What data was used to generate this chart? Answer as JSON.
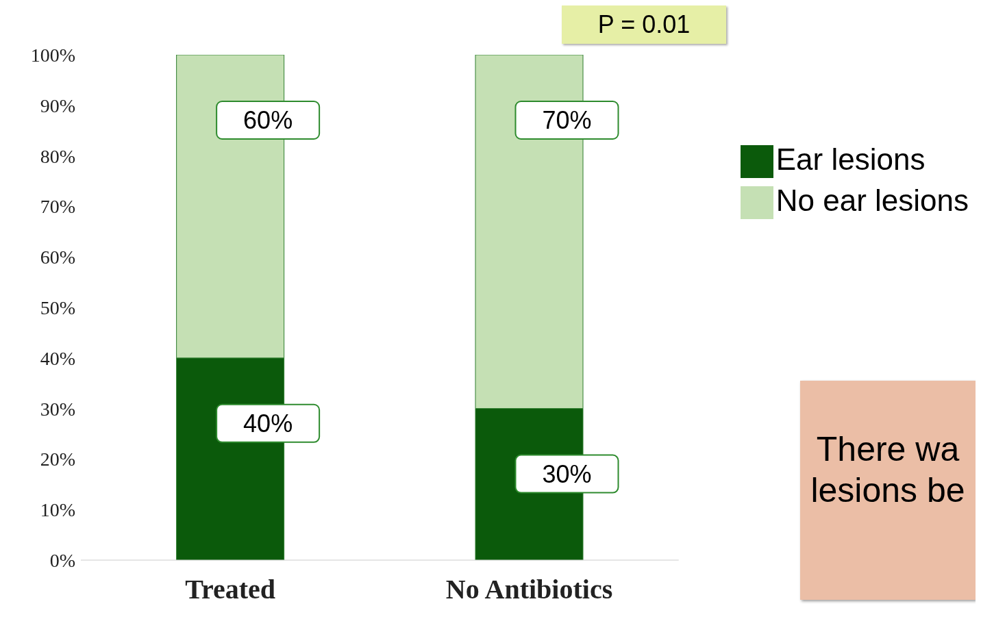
{
  "chart_data": {
    "type": "bar",
    "stacked": true,
    "categories": [
      "Treated",
      "No Antibiotics"
    ],
    "series": [
      {
        "name": "Ear lesions",
        "color": "#0b5a0b",
        "values": [
          40,
          30
        ],
        "value_labels": [
          "40%",
          "30%"
        ]
      },
      {
        "name": "No ear lesions",
        "color": "#c5e0b4",
        "values": [
          60,
          70
        ],
        "value_labels": [
          "60%",
          "70%"
        ]
      }
    ],
    "ylim": [
      0,
      100
    ],
    "yticks": [
      {
        "value": 0,
        "label": "0%"
      },
      {
        "value": 10,
        "label": "10%"
      },
      {
        "value": 20,
        "label": "20%"
      },
      {
        "value": 30,
        "label": "30%"
      },
      {
        "value": 40,
        "label": "40%"
      },
      {
        "value": 50,
        "label": "50%"
      },
      {
        "value": 60,
        "label": "60%"
      },
      {
        "value": 70,
        "label": "70%"
      },
      {
        "value": 80,
        "label": "80%"
      },
      {
        "value": 90,
        "label": "90%"
      },
      {
        "value": 100,
        "label": "100%"
      }
    ],
    "grid": false,
    "legend": "right",
    "annotations": [
      "P = 0.01",
      "There wa",
      "lesions be"
    ]
  }
}
